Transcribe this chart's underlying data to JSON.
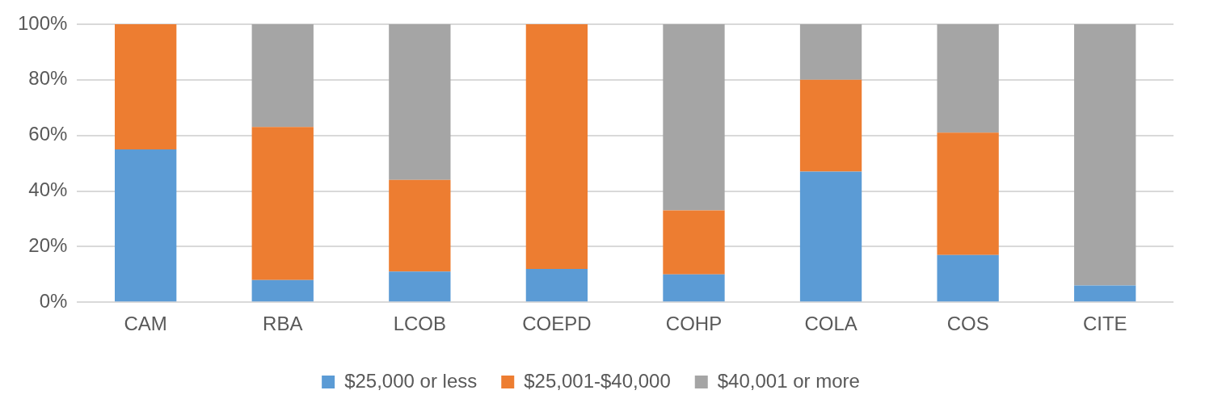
{
  "chart_data": {
    "type": "bar",
    "stacked": true,
    "categories": [
      "CAM",
      "RBA",
      "LCOB",
      "COEPD",
      "COHP",
      "COLA",
      "COS",
      "CITE"
    ],
    "series": [
      {
        "name": "$25,000 or less",
        "color": "#5b9bd5",
        "values": [
          55,
          8,
          11,
          12,
          10,
          47,
          17,
          6
        ]
      },
      {
        "name": "$25,001-$40,000",
        "color": "#ed7d31",
        "values": [
          45,
          55,
          33,
          88,
          23,
          33,
          44,
          0
        ]
      },
      {
        "name": "$40,001 or more",
        "color": "#a5a5a5",
        "values": [
          0,
          37,
          56,
          0,
          67,
          20,
          39,
          94
        ]
      }
    ],
    "ylim": [
      0,
      100
    ],
    "yticks": [
      {
        "value": 0,
        "label": "0%"
      },
      {
        "value": 20,
        "label": "20%"
      },
      {
        "value": 40,
        "label": "40%"
      },
      {
        "value": 60,
        "label": "60%"
      },
      {
        "value": 80,
        "label": "80%"
      },
      {
        "value": 100,
        "label": "100%"
      }
    ],
    "grid": "y",
    "legend": "bottom"
  }
}
